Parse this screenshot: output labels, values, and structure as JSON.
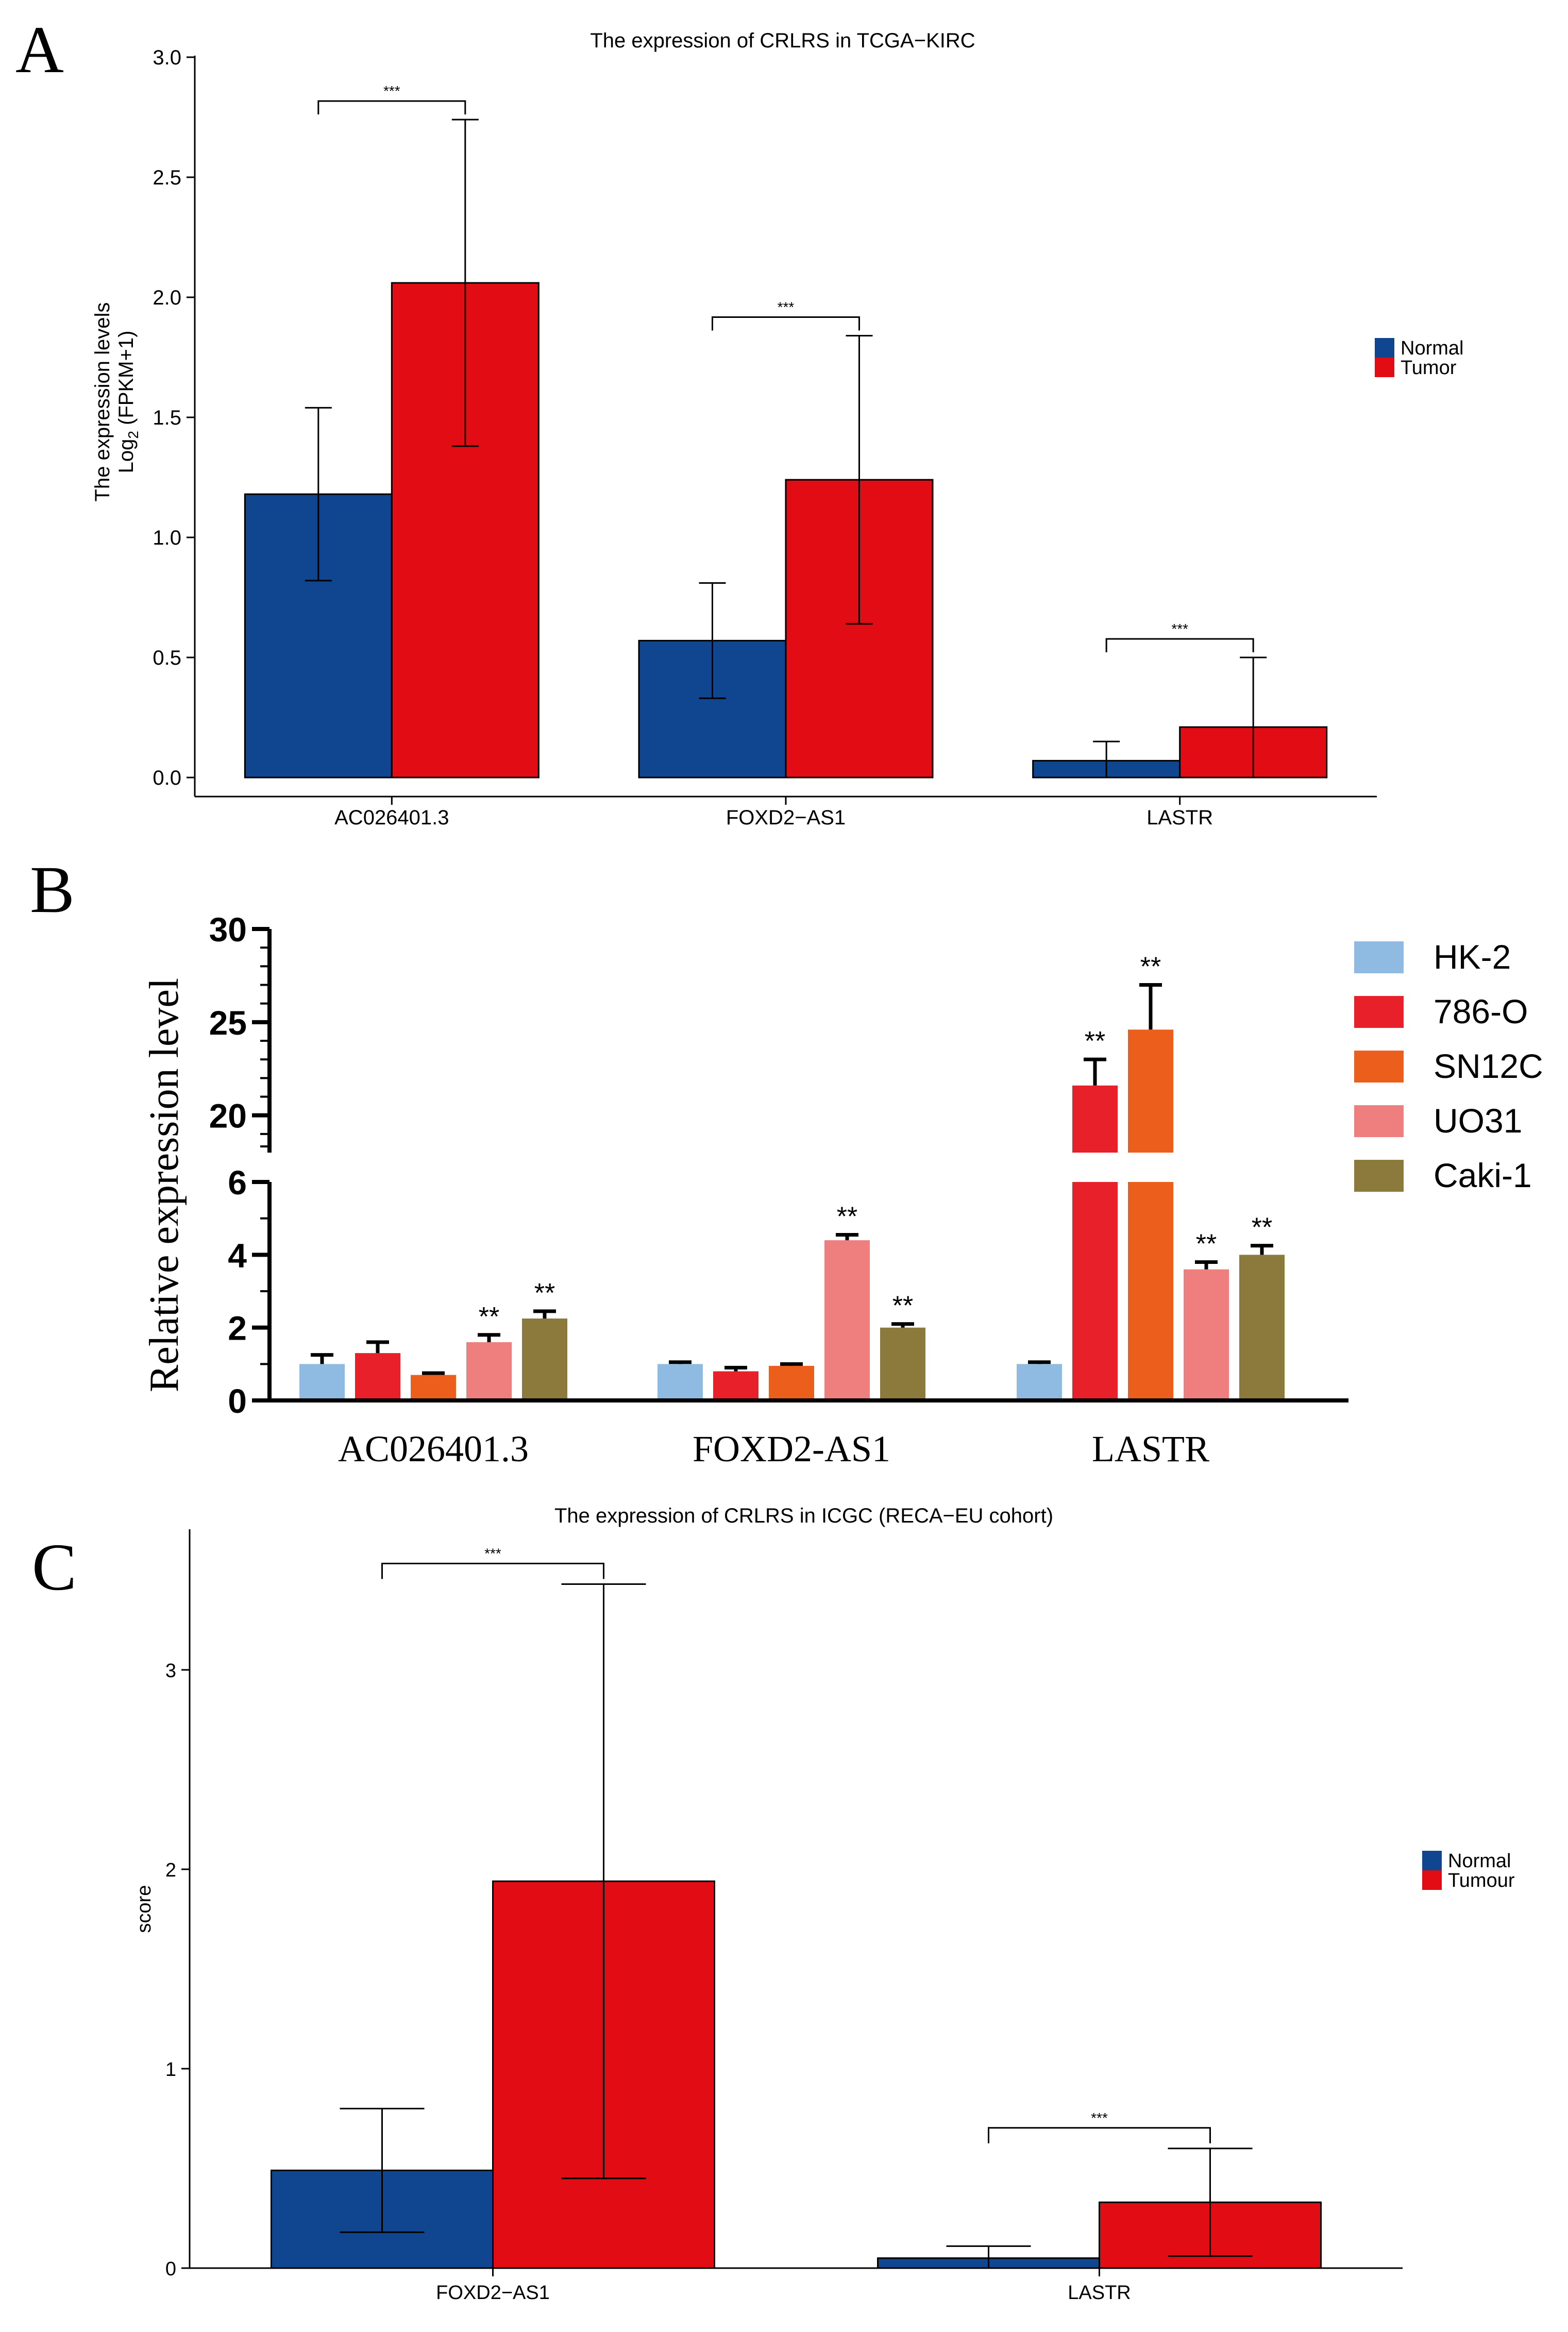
{
  "panel_labels": {
    "a": "A",
    "b": "B",
    "c": "C"
  },
  "colors": {
    "normal": "#10468f",
    "tumor": "#e10c14",
    "hk2": "#8fbbe3",
    "c786o": "#e8202a",
    "sn12c": "#eb5e1c",
    "uo31": "#ef7f7f",
    "caki1": "#8b7a3c"
  },
  "significance": {
    "three_star": "***",
    "two_star": "**"
  },
  "chart_data": [
    {
      "panel": "A",
      "type": "bar",
      "title": "The expression of CRLRS in TCGA−KIRC",
      "ylabel_line1": "The expression levels",
      "ylabel_line2_pre": "Log",
      "ylabel_line2_sub": "2",
      "ylabel_line2_post": " (FPKM+1)",
      "xlabel": "",
      "categories": [
        "AC026401.3",
        "FOXD2−AS1",
        "LASTR"
      ],
      "ylim": [
        0,
        3.0
      ],
      "yticks": [
        "0.0",
        "0.5",
        "1.0",
        "1.5",
        "2.0",
        "2.5",
        "3.0"
      ],
      "legend_position": "right",
      "series": [
        {
          "name": "Normal",
          "values": [
            1.18,
            0.57,
            0.07
          ],
          "err": [
            0.36,
            0.24,
            0.08
          ]
        },
        {
          "name": "Tumor",
          "values": [
            2.06,
            1.24,
            0.21
          ],
          "err": [
            0.68,
            0.6,
            0.29
          ]
        }
      ],
      "significance": [
        "***",
        "***",
        "***"
      ]
    },
    {
      "panel": "B",
      "type": "bar",
      "title": "",
      "ylabel": "Relative expression level",
      "xlabel": "",
      "categories": [
        "AC026401.3",
        "FOXD2-AS1",
        "LASTR"
      ],
      "axis_break": {
        "lower_range": [
          0,
          6
        ],
        "upper_range": [
          18,
          30
        ]
      },
      "yticks_lower": [
        "0",
        "2",
        "4",
        "6"
      ],
      "yticks_upper": [
        "20",
        "25",
        "30"
      ],
      "legend_position": "right",
      "series": [
        {
          "name": "HK-2",
          "values": [
            1.0,
            1.0,
            1.0
          ],
          "err": [
            0.25,
            0.05,
            0.05
          ]
        },
        {
          "name": "786-O",
          "values": [
            1.3,
            0.8,
            21.6
          ],
          "err": [
            0.3,
            0.1,
            1.4
          ]
        },
        {
          "name": "SN12C",
          "values": [
            0.7,
            0.95,
            24.6
          ],
          "err": [
            0.05,
            0.05,
            2.4
          ]
        },
        {
          "name": "UO31",
          "values": [
            1.6,
            4.4,
            3.6
          ],
          "err": [
            0.2,
            0.15,
            0.2
          ]
        },
        {
          "name": "Caki-1",
          "values": [
            2.25,
            2.0,
            4.0
          ],
          "err": [
            0.2,
            0.1,
            0.25
          ]
        }
      ],
      "significance": [
        [
          "",
          "",
          "",
          "**",
          "**"
        ],
        [
          "",
          "",
          "",
          "**",
          "**"
        ],
        [
          "",
          "**",
          "**",
          "**",
          "**"
        ]
      ]
    },
    {
      "panel": "C",
      "type": "bar",
      "title": "The expression of CRLRS in ICGC   (RECA−EU cohort)",
      "ylabel": "score",
      "xlabel": "",
      "categories": [
        "FOXD2−AS1",
        "LASTR"
      ],
      "ylim": [
        0,
        3.7
      ],
      "yticks": [
        "0",
        "1",
        "2",
        "3"
      ],
      "legend_position": "right",
      "series": [
        {
          "name": "Normal",
          "values": [
            0.49,
            0.05
          ],
          "err": [
            0.31,
            0.06
          ]
        },
        {
          "name": "Tumour",
          "values": [
            1.94,
            0.33
          ],
          "err": [
            1.49,
            0.27
          ]
        }
      ],
      "significance": [
        "***",
        "***"
      ]
    }
  ]
}
